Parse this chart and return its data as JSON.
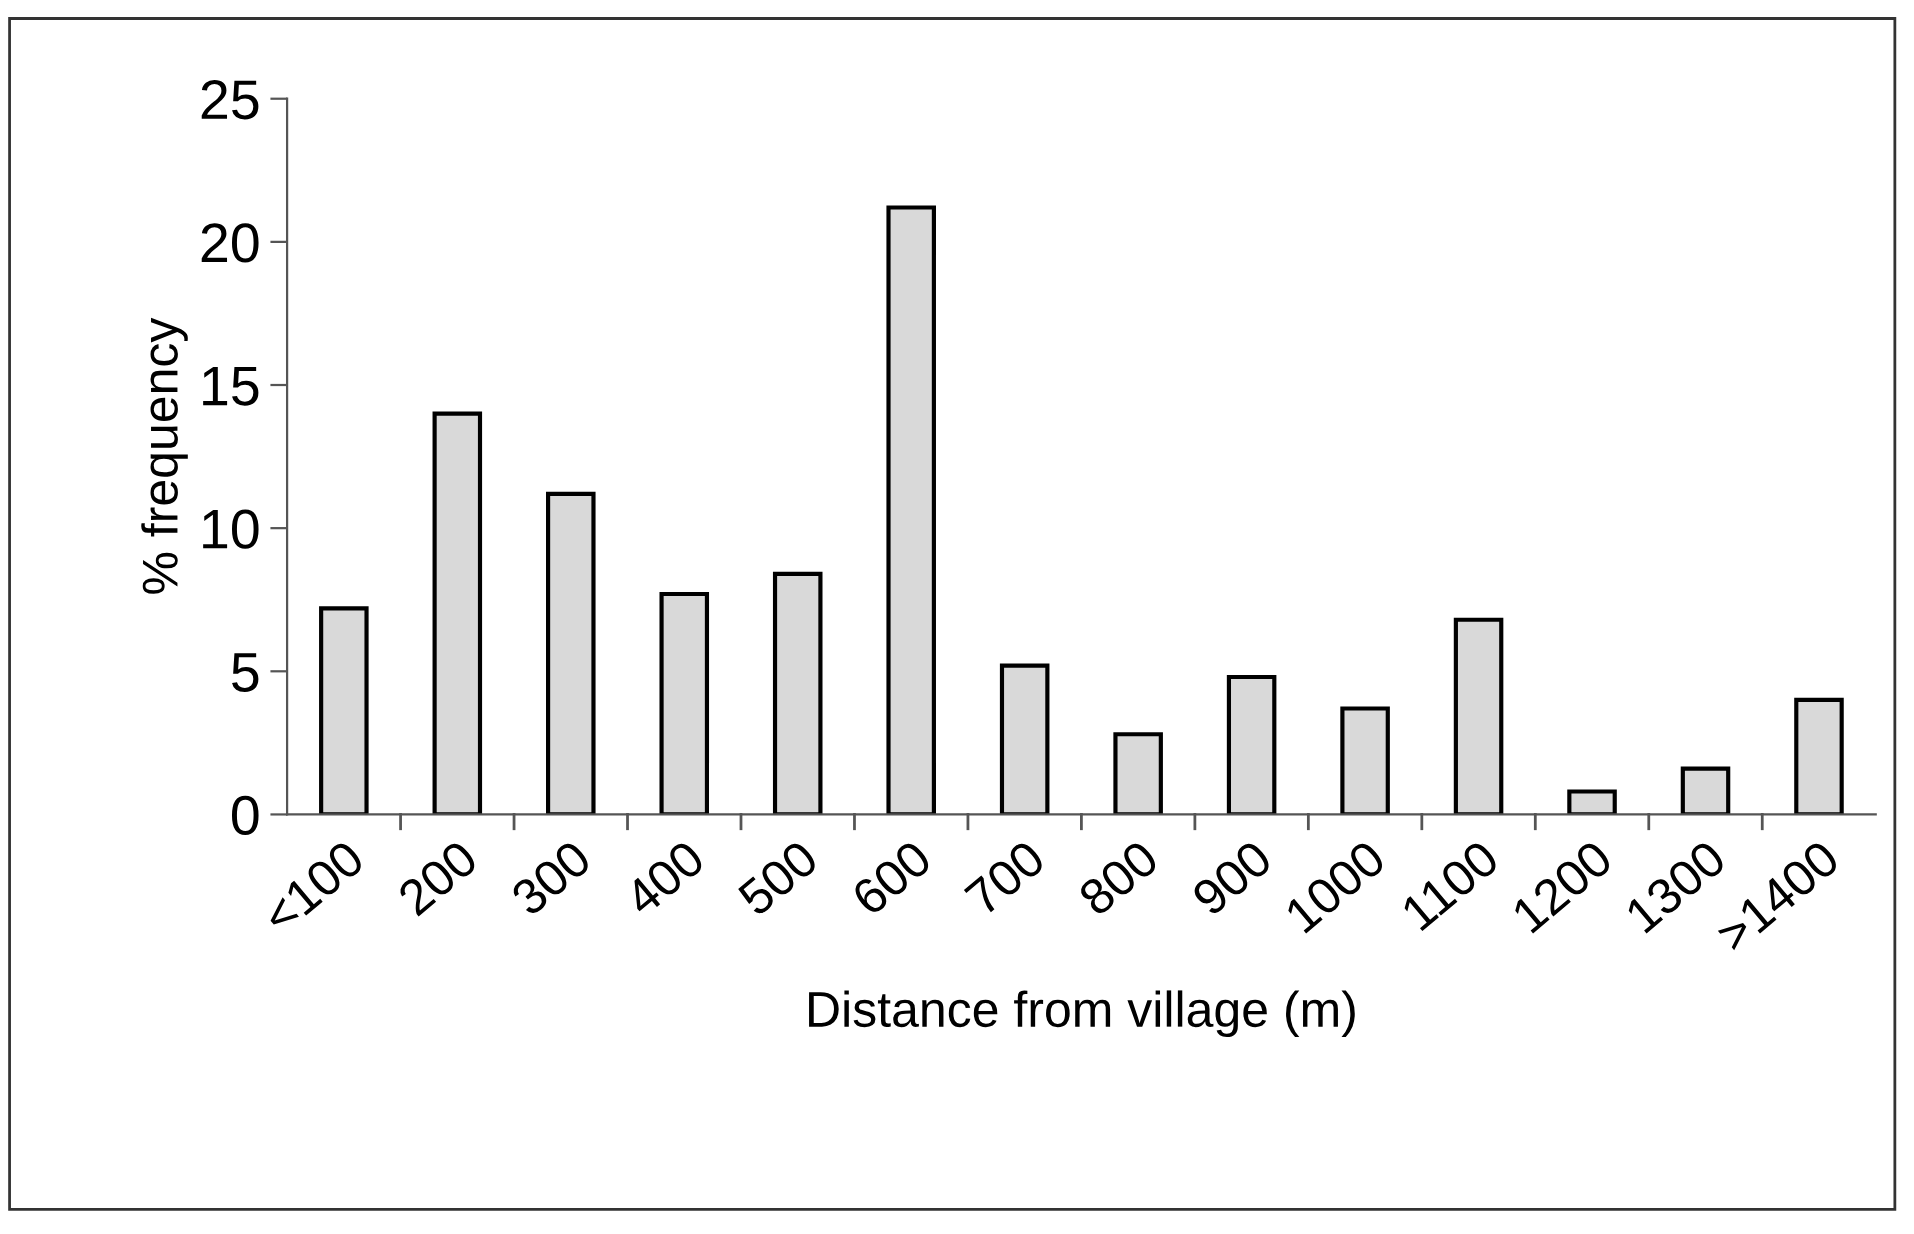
{
  "chart_data": {
    "type": "bar",
    "xlabel": "Distance from village (m)",
    "ylabel": "% frequency",
    "categories": [
      "<100",
      "200",
      "300",
      "400",
      "500",
      "600",
      "700",
      "800",
      "900",
      "1000",
      "1100",
      "1200",
      "1300",
      ">1400"
    ],
    "values": [
      7.2,
      14.0,
      11.2,
      7.7,
      8.4,
      21.2,
      5.2,
      2.8,
      4.8,
      3.7,
      6.8,
      0.8,
      1.6,
      4.0
    ],
    "color": "#d9d9d9",
    "ylim": [
      0,
      25
    ],
    "yticks": [
      0,
      5,
      10,
      15,
      20,
      25
    ],
    "grid": false
  }
}
